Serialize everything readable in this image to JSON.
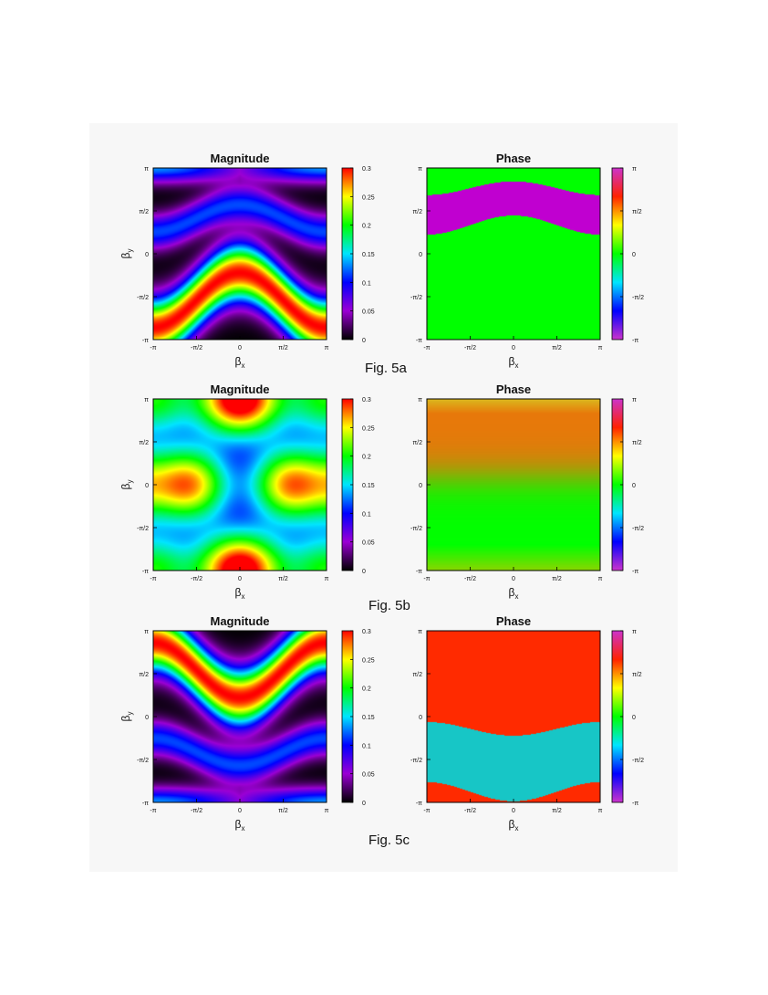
{
  "figures": [
    {
      "caption": "Fig. 5a",
      "panels": [
        {
          "title": "Magnitude",
          "kind": "magnitude",
          "pattern": "a"
        },
        {
          "title": "Phase",
          "kind": "phase",
          "pattern": "a"
        }
      ]
    },
    {
      "caption": "Fig. 5b",
      "panels": [
        {
          "title": "Magnitude",
          "kind": "magnitude",
          "pattern": "b"
        },
        {
          "title": "Phase",
          "kind": "phase",
          "pattern": "b"
        }
      ]
    },
    {
      "caption": "Fig. 5c",
      "panels": [
        {
          "title": "Magnitude",
          "kind": "magnitude",
          "pattern": "c"
        },
        {
          "title": "Phase",
          "kind": "phase",
          "pattern": "c"
        }
      ]
    }
  ],
  "axes": {
    "x_ticks": [
      "-π",
      "-π/2",
      "0",
      "π/2",
      "π"
    ],
    "y_ticks": [
      "π",
      "π/2",
      "0",
      "-π/2",
      "-π"
    ],
    "xlabel": "β",
    "xlabel_sub": "x",
    "ylabel": "β",
    "ylabel_sub": "y"
  },
  "colorbars": {
    "magnitude_ticks": [
      "0.3",
      "0.25",
      "0.2",
      "0.15",
      "0.1",
      "0.05",
      "0"
    ],
    "phase_ticks": [
      "π",
      "π/2",
      "0",
      "-π/2",
      "-π"
    ]
  },
  "chart_data": {
    "type": "heatmap",
    "x_range": [
      -3.1416,
      3.1416
    ],
    "y_range": [
      -3.1416,
      3.1416
    ],
    "magnitude_range": [
      0,
      0.3
    ],
    "phase_range": [
      -3.1416,
      3.1416
    ],
    "colormap": [
      "#000000",
      "#9b00d4",
      "#0000ff",
      "#00e5ff",
      "#00ff00",
      "#ffff00",
      "#ff0000"
    ],
    "phase_colormap": [
      "#cc33cc",
      "#0000ff",
      "#00e5ff",
      "#00ff00",
      "#ffff00",
      "#ff2200",
      "#cc33cc"
    ],
    "colors": {
      "phase_a_background": "#00ff00",
      "phase_a_band": "#c000d0",
      "phase_b_top": "#e8780a",
      "phase_b_bottom": "#00ff00",
      "phase_c_background": "#ff2a00",
      "phase_c_band": "#17c6c6"
    }
  }
}
